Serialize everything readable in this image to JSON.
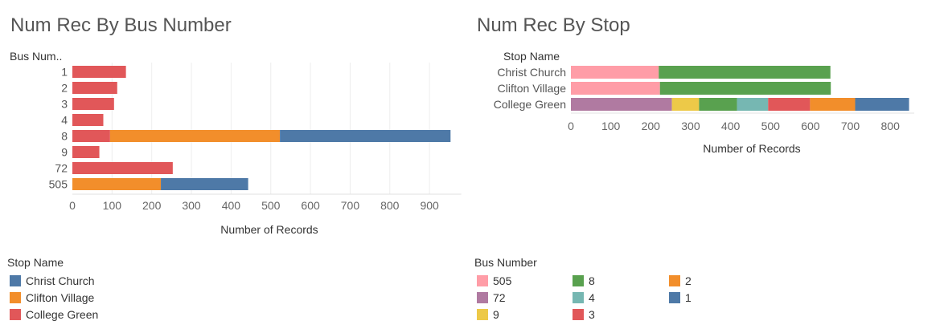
{
  "chart_data": [
    {
      "type": "bar",
      "orientation": "horizontal",
      "stacked": true,
      "title": "Num Rec By Bus Number",
      "ylabel": "Bus Num..",
      "xlabel": "Number of Records",
      "categories": [
        "1",
        "2",
        "3",
        "4",
        "8",
        "9",
        "72",
        "505"
      ],
      "xticks": [
        0,
        100,
        200,
        300,
        400,
        500,
        600,
        700,
        800,
        900
      ],
      "xlim": [
        0,
        980
      ],
      "series": [
        {
          "name": "College Green",
          "color": "#e15759",
          "values": [
            135,
            113,
            105,
            78,
            95,
            68,
            253,
            0
          ]
        },
        {
          "name": "Clifton Village",
          "color": "#f28e2b",
          "values": [
            0,
            0,
            0,
            0,
            428,
            0,
            0,
            223
          ]
        },
        {
          "name": "Christ Church",
          "color": "#4e79a7",
          "values": [
            0,
            0,
            0,
            0,
            430,
            0,
            0,
            220
          ]
        }
      ]
    },
    {
      "type": "bar",
      "orientation": "horizontal",
      "stacked": true,
      "title": "Num Rec By Stop",
      "ylabel": "Stop Name",
      "xlabel": "Number of Records",
      "categories": [
        "Christ Church",
        "Clifton Village",
        "College Green"
      ],
      "xticks": [
        0,
        100,
        200,
        300,
        400,
        500,
        600,
        700,
        800
      ],
      "xlim": [
        0,
        860
      ],
      "series": [
        {
          "name": "505",
          "color": "#ff9da7",
          "values": [
            220,
            223,
            0
          ]
        },
        {
          "name": "72",
          "color": "#b07aa1",
          "values": [
            0,
            0,
            253
          ]
        },
        {
          "name": "9",
          "color": "#edc948",
          "values": [
            0,
            0,
            68
          ]
        },
        {
          "name": "8",
          "color": "#59a14f",
          "values": [
            430,
            428,
            95
          ]
        },
        {
          "name": "4",
          "color": "#76b7b2",
          "values": [
            0,
            0,
            78
          ]
        },
        {
          "name": "3",
          "color": "#e15759",
          "values": [
            0,
            0,
            105
          ]
        },
        {
          "name": "2",
          "color": "#f28e2b",
          "values": [
            0,
            0,
            113
          ]
        },
        {
          "name": "1",
          "color": "#4e79a7",
          "values": [
            0,
            0,
            135
          ]
        }
      ]
    }
  ],
  "legends": {
    "stop": {
      "title": "Stop Name",
      "items": [
        {
          "label": "Christ Church",
          "color": "#4e79a7"
        },
        {
          "label": "Clifton Village",
          "color": "#f28e2b"
        },
        {
          "label": "College Green",
          "color": "#e15759"
        }
      ]
    },
    "bus": {
      "title": "Bus Number",
      "items": [
        {
          "label": "505",
          "color": "#ff9da7"
        },
        {
          "label": "72",
          "color": "#b07aa1"
        },
        {
          "label": "9",
          "color": "#edc948"
        },
        {
          "label": "8",
          "color": "#59a14f"
        },
        {
          "label": "4",
          "color": "#76b7b2"
        },
        {
          "label": "3",
          "color": "#e15759"
        },
        {
          "label": "2",
          "color": "#f28e2b"
        },
        {
          "label": "1",
          "color": "#4e79a7"
        }
      ]
    }
  }
}
